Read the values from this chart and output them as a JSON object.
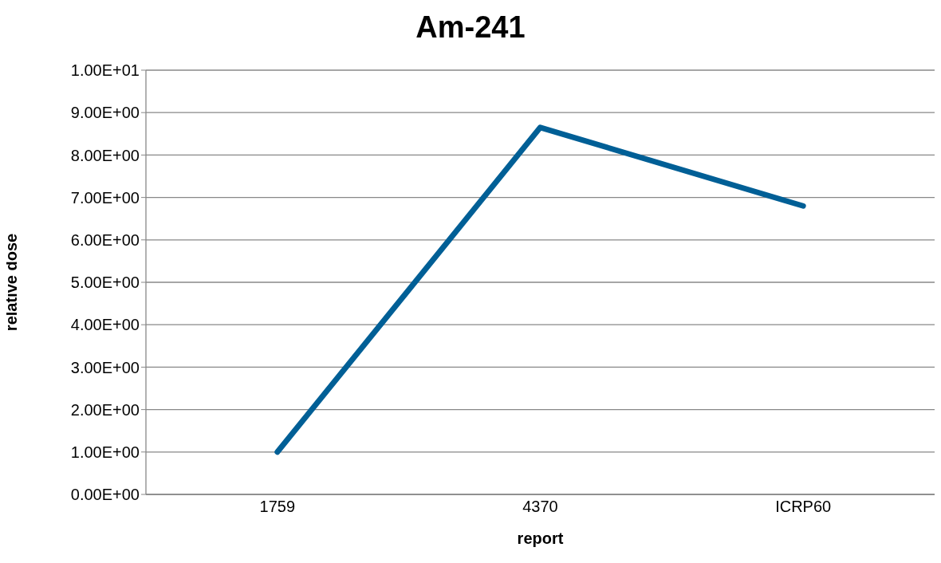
{
  "chart_data": {
    "type": "line",
    "title": "Am-241",
    "xlabel": "report",
    "ylabel": "relative dose",
    "categories": [
      "1759",
      "4370",
      "ICRP60"
    ],
    "series": [
      {
        "color": "#005f96",
        "values": [
          1.0,
          8.65,
          6.8
        ]
      }
    ],
    "ylim": [
      0,
      10
    ],
    "yticks": [
      {
        "value": 0,
        "label": "0.00E+00"
      },
      {
        "value": 1,
        "label": "1.00E+00"
      },
      {
        "value": 2,
        "label": "2.00E+00"
      },
      {
        "value": 3,
        "label": "3.00E+00"
      },
      {
        "value": 4,
        "label": "4.00E+00"
      },
      {
        "value": 5,
        "label": "5.00E+00"
      },
      {
        "value": 6,
        "label": "6.00E+00"
      },
      {
        "value": 7,
        "label": "7.00E+00"
      },
      {
        "value": 8,
        "label": "8.00E+00"
      },
      {
        "value": 9,
        "label": "9.00E+00"
      },
      {
        "value": 10,
        "label": "1.00E+01"
      }
    ],
    "grid": "y",
    "legend": false,
    "marker": "none",
    "line_style": "solid"
  }
}
